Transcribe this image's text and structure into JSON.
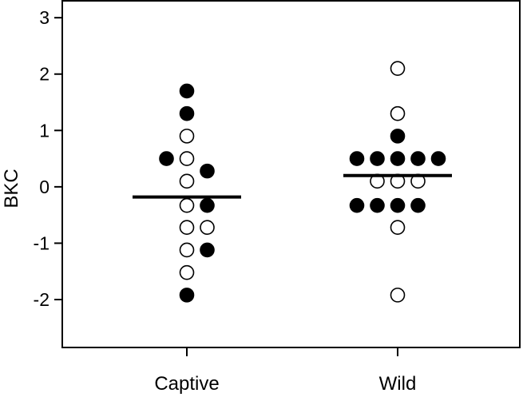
{
  "chart_data": {
    "type": "scatter",
    "title": "",
    "xlabel": "",
    "ylabel": "BKC",
    "ylim": [
      -2.85,
      3.3
    ],
    "yticks": [
      -2,
      -1,
      0,
      1,
      2,
      3
    ],
    "ytick_labels": [
      "-2",
      "-1",
      "0",
      "1",
      "2",
      "3"
    ],
    "categories": [
      "Captive",
      "Wild"
    ],
    "grid": false,
    "legend": "none",
    "marker_fill": {
      "filled": "#000000",
      "open": "#ffffff"
    },
    "points": [
      {
        "group": "Captive",
        "offset": 0,
        "y": 1.7,
        "filled": true
      },
      {
        "group": "Captive",
        "offset": 0,
        "y": 1.3,
        "filled": true
      },
      {
        "group": "Captive",
        "offset": 0,
        "y": 0.9,
        "filled": false
      },
      {
        "group": "Captive",
        "offset": -1,
        "y": 0.5,
        "filled": true
      },
      {
        "group": "Captive",
        "offset": 0,
        "y": 0.5,
        "filled": false
      },
      {
        "group": "Captive",
        "offset": 0,
        "y": 0.1,
        "filled": false
      },
      {
        "group": "Captive",
        "offset": 1,
        "y": 0.28,
        "filled": true
      },
      {
        "group": "Captive",
        "offset": 0,
        "y": -0.33,
        "filled": false
      },
      {
        "group": "Captive",
        "offset": 1,
        "y": -0.33,
        "filled": true
      },
      {
        "group": "Captive",
        "offset": 0,
        "y": -0.72,
        "filled": false
      },
      {
        "group": "Captive",
        "offset": 1,
        "y": -0.72,
        "filled": false
      },
      {
        "group": "Captive",
        "offset": 0,
        "y": -1.12,
        "filled": false
      },
      {
        "group": "Captive",
        "offset": 1,
        "y": -1.12,
        "filled": true
      },
      {
        "group": "Captive",
        "offset": 0,
        "y": -1.52,
        "filled": false
      },
      {
        "group": "Captive",
        "offset": 0,
        "y": -1.92,
        "filled": true
      },
      {
        "group": "Wild",
        "offset": 0,
        "y": 2.1,
        "filled": false
      },
      {
        "group": "Wild",
        "offset": 0,
        "y": 1.3,
        "filled": false
      },
      {
        "group": "Wild",
        "offset": 0,
        "y": 0.9,
        "filled": true
      },
      {
        "group": "Wild",
        "offset": -2,
        "y": 0.5,
        "filled": true
      },
      {
        "group": "Wild",
        "offset": -1,
        "y": 0.5,
        "filled": true
      },
      {
        "group": "Wild",
        "offset": 0,
        "y": 0.5,
        "filled": true
      },
      {
        "group": "Wild",
        "offset": 1,
        "y": 0.5,
        "filled": true
      },
      {
        "group": "Wild",
        "offset": 2,
        "y": 0.5,
        "filled": true
      },
      {
        "group": "Wild",
        "offset": -1,
        "y": 0.1,
        "filled": false
      },
      {
        "group": "Wild",
        "offset": 0,
        "y": 0.1,
        "filled": false
      },
      {
        "group": "Wild",
        "offset": 1,
        "y": 0.1,
        "filled": false
      },
      {
        "group": "Wild",
        "offset": -2,
        "y": -0.33,
        "filled": true
      },
      {
        "group": "Wild",
        "offset": -1,
        "y": -0.33,
        "filled": true
      },
      {
        "group": "Wild",
        "offset": 0,
        "y": -0.33,
        "filled": true
      },
      {
        "group": "Wild",
        "offset": 1,
        "y": -0.33,
        "filled": true
      },
      {
        "group": "Wild",
        "offset": 0,
        "y": -0.72,
        "filled": false
      },
      {
        "group": "Wild",
        "offset": 0,
        "y": -1.92,
        "filled": false
      }
    ],
    "means": [
      {
        "group": "Captive",
        "y": -0.18
      },
      {
        "group": "Wild",
        "y": 0.2
      }
    ]
  }
}
